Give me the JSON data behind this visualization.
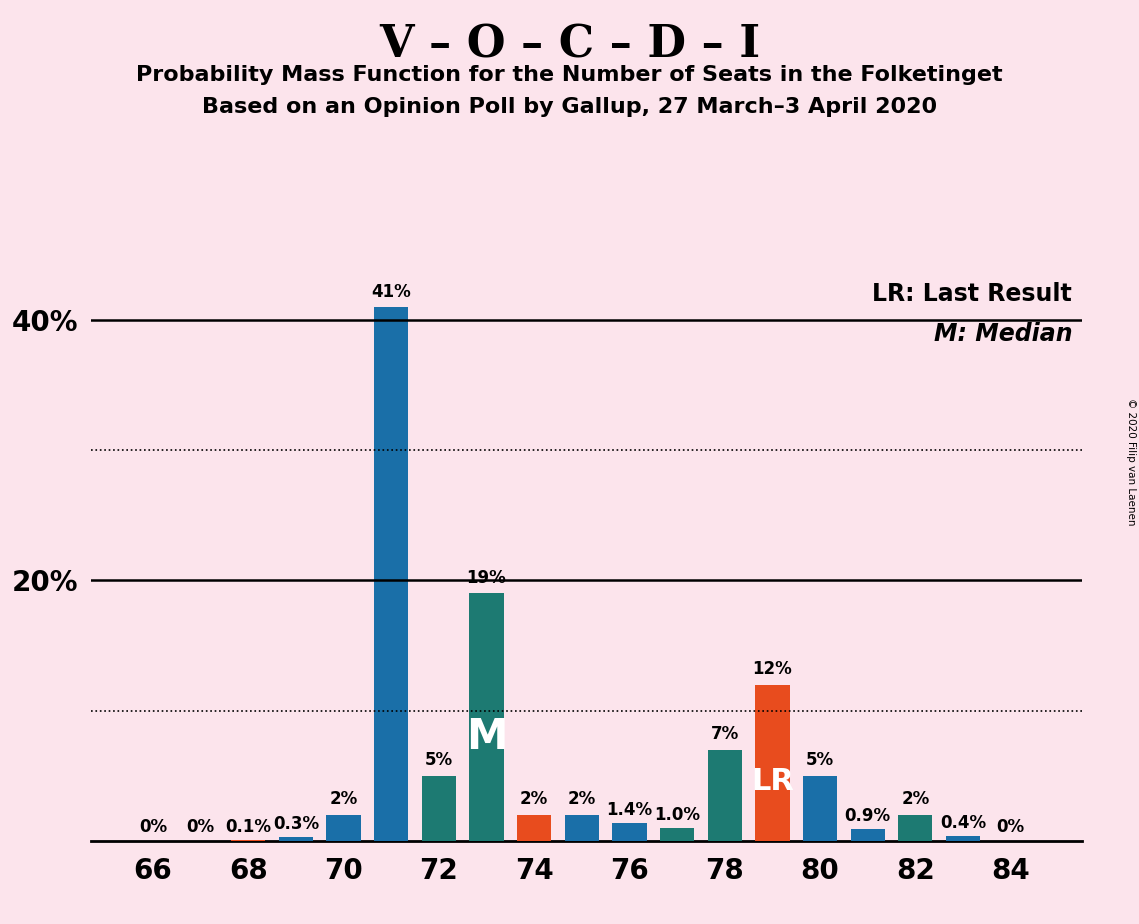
{
  "title1": "V – O – C – D – I",
  "title2": "Probability Mass Function for the Number of Seats in the Folketinget",
  "title3": "Based on an Opinion Poll by Gallup, 27 March–3 April 2020",
  "copyright": "© 2020 Filip van Laenen",
  "background_color": "#fce4ec",
  "seats": [
    66,
    67,
    68,
    69,
    70,
    71,
    72,
    73,
    74,
    75,
    76,
    77,
    78,
    79,
    80,
    81,
    82,
    83,
    84
  ],
  "values": [
    0.0,
    0.0,
    0.1,
    0.3,
    2.0,
    41.0,
    5.0,
    19.0,
    2.0,
    2.0,
    1.4,
    1.0,
    7.0,
    12.0,
    5.0,
    0.9,
    2.0,
    0.4,
    0.0
  ],
  "labels": [
    "0%",
    "0%",
    "0.1%",
    "0.3%",
    "2%",
    "41%",
    "5%",
    "19%",
    "2%",
    "2%",
    "1.4%",
    "1.0%",
    "7%",
    "12%",
    "5%",
    "0.9%",
    "2%",
    "0.4%",
    "0%"
  ],
  "colors": [
    "#1a6fa8",
    "#1a6fa8",
    "#e84c1e",
    "#1a6fa8",
    "#1a6fa8",
    "#1a6fa8",
    "#1d7a72",
    "#1d7a72",
    "#e84c1e",
    "#1a6fa8",
    "#1a6fa8",
    "#1d7a72",
    "#1d7a72",
    "#e84c1e",
    "#1a6fa8",
    "#1a6fa8",
    "#1d7a72",
    "#1a6fa8",
    "#1d7a72"
  ],
  "median_seat": 73,
  "lr_seat": 79,
  "ylim": [
    0,
    44
  ],
  "dotted_lines": [
    10,
    30
  ],
  "solid_lines": [
    20,
    40
  ],
  "xticks": [
    66,
    68,
    70,
    72,
    74,
    76,
    78,
    80,
    82,
    84
  ],
  "bar_width": 0.72,
  "legend_lr": "LR: Last Result",
  "legend_m": "M: Median"
}
